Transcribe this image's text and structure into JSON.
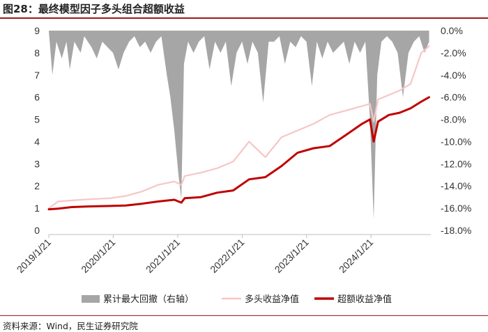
{
  "figure": {
    "title": "图28：最终模型因子多头组合超额收益",
    "source": "资料来源：Wind，民生证券研究院"
  },
  "colors": {
    "drawdown": "#a6a6a6",
    "long_nav": "#f7c6c6",
    "excess_nav": "#c00000",
    "accent_rule": "#9b1b1b"
  },
  "chart_data": {
    "type": "line",
    "x_type": "date",
    "x_ticks": [
      "2019/1/21",
      "2020/1/21",
      "2021/1/21",
      "2022/1/21",
      "2023/1/21",
      "2024/1/21"
    ],
    "y_left": {
      "ticks": [
        0,
        1,
        2,
        3,
        4,
        5,
        6,
        7,
        8,
        9
      ],
      "range": [
        0,
        9
      ]
    },
    "y_right": {
      "ticks": [
        "0.0%",
        "-2.0%",
        "-4.0%",
        "-6.0%",
        "-8.0%",
        "-10.0%",
        "-12.0%",
        "-14.0%",
        "-16.0%",
        "-18.0%"
      ],
      "range": [
        -18,
        0
      ],
      "unit": "%"
    },
    "legend": [
      "累计最大回撤（右轴）",
      "多头收益净值",
      "超额收益净值"
    ],
    "series": [
      {
        "name": "超额收益净值",
        "axis": "left",
        "x": [
          "2019-01-21",
          "2019-03-15",
          "2019-06-01",
          "2019-09-01",
          "2020-01-01",
          "2020-04-01",
          "2020-07-01",
          "2020-10-01",
          "2021-01-01",
          "2021-02-10",
          "2021-03-01",
          "2021-06-01",
          "2021-09-01",
          "2021-12-01",
          "2022-03-01",
          "2022-06-01",
          "2022-09-01",
          "2022-12-01",
          "2023-03-01",
          "2023-06-01",
          "2023-09-01",
          "2023-12-01",
          "2024-01-15",
          "2024-02-05",
          "2024-03-01",
          "2024-05-01",
          "2024-07-01",
          "2024-09-01",
          "2024-11-01",
          "2024-12-15"
        ],
        "y": [
          0.95,
          0.98,
          1.05,
          1.08,
          1.1,
          1.12,
          1.2,
          1.3,
          1.38,
          1.25,
          1.45,
          1.5,
          1.7,
          1.8,
          2.3,
          2.4,
          2.9,
          3.5,
          3.7,
          3.8,
          4.3,
          4.8,
          5.0,
          4.0,
          4.9,
          5.2,
          5.3,
          5.5,
          5.8,
          6.0
        ]
      },
      {
        "name": "多头收益净值",
        "axis": "left",
        "x": [
          "2019-01-21",
          "2019-03-15",
          "2019-06-01",
          "2019-09-01",
          "2020-01-01",
          "2020-04-01",
          "2020-07-01",
          "2020-10-01",
          "2021-01-01",
          "2021-02-10",
          "2021-03-01",
          "2021-06-01",
          "2021-09-01",
          "2021-12-01",
          "2022-03-01",
          "2022-06-01",
          "2022-09-01",
          "2022-12-01",
          "2023-03-01",
          "2023-06-01",
          "2023-09-01",
          "2023-12-01",
          "2024-01-15",
          "2024-02-05",
          "2024-03-01",
          "2024-05-01",
          "2024-07-01",
          "2024-09-01",
          "2024-11-01",
          "2024-12-15"
        ],
        "y": [
          1.0,
          1.3,
          1.35,
          1.4,
          1.45,
          1.55,
          1.75,
          2.05,
          2.2,
          2.05,
          2.45,
          2.6,
          2.8,
          3.1,
          4.0,
          3.3,
          4.2,
          4.5,
          4.8,
          5.2,
          5.4,
          5.6,
          5.7,
          4.9,
          5.9,
          6.1,
          6.3,
          6.6,
          8.0,
          8.3
        ]
      },
      {
        "name": "累计最大回撤（右轴）",
        "axis": "right",
        "type": "area",
        "x": [
          "2019-01-21",
          "2019-02-10",
          "2019-03-05",
          "2019-04-05",
          "2019-05-01",
          "2019-05-20",
          "2019-06-15",
          "2019-07-20",
          "2019-08-10",
          "2019-09-20",
          "2019-10-20",
          "2019-11-20",
          "2019-12-20",
          "2020-01-20",
          "2020-02-20",
          "2020-03-20",
          "2020-04-20",
          "2020-05-20",
          "2020-06-20",
          "2020-07-20",
          "2020-08-20",
          "2020-09-20",
          "2020-10-20",
          "2020-11-20",
          "2020-12-10",
          "2021-01-01",
          "2021-01-25",
          "2021-02-10",
          "2021-02-25",
          "2021-03-20",
          "2021-04-20",
          "2021-05-20",
          "2021-06-20",
          "2021-07-20",
          "2021-08-20",
          "2021-09-20",
          "2021-10-20",
          "2021-11-20",
          "2021-12-20",
          "2022-01-20",
          "2022-02-20",
          "2022-03-20",
          "2022-04-20",
          "2022-05-20",
          "2022-06-20",
          "2022-07-20",
          "2022-08-20",
          "2022-09-20",
          "2022-10-20",
          "2022-11-20",
          "2022-12-20",
          "2023-01-20",
          "2023-02-20",
          "2023-03-20",
          "2023-04-20",
          "2023-05-20",
          "2023-06-20",
          "2023-07-20",
          "2023-08-20",
          "2023-09-20",
          "2023-10-20",
          "2023-11-20",
          "2023-12-20",
          "2024-01-15",
          "2024-02-05",
          "2024-02-25",
          "2024-03-20",
          "2024-04-20",
          "2024-05-20",
          "2024-06-20",
          "2024-07-20",
          "2024-08-20",
          "2024-09-20",
          "2024-10-20",
          "2024-11-20",
          "2024-12-15"
        ],
        "y": [
          0,
          -4,
          -1,
          -2.5,
          -1,
          -3.5,
          -1,
          -2,
          -0.5,
          -1.5,
          -2.5,
          -1,
          -1.5,
          -2,
          -3.5,
          -2,
          -1,
          -0.5,
          -1.5,
          -1,
          -2,
          -1,
          -0.5,
          -4,
          -6,
          -9,
          -13,
          -15.2,
          -3,
          -1,
          -2,
          -1,
          -0.5,
          -3.5,
          -1,
          -2,
          -1,
          -5,
          -2,
          -1,
          -3,
          -1,
          -2,
          -6.5,
          -1,
          -1,
          -0.5,
          -3,
          -1,
          -1.5,
          -0.5,
          -1,
          -5,
          -1,
          -2.5,
          -1,
          -2,
          -1.5,
          -1,
          -3,
          -1,
          -2,
          -1,
          -8,
          -17,
          -4,
          -1,
          -0.5,
          -1,
          -2,
          -6,
          -2,
          -1,
          -0.5,
          -2,
          -1
        ]
      }
    ]
  }
}
